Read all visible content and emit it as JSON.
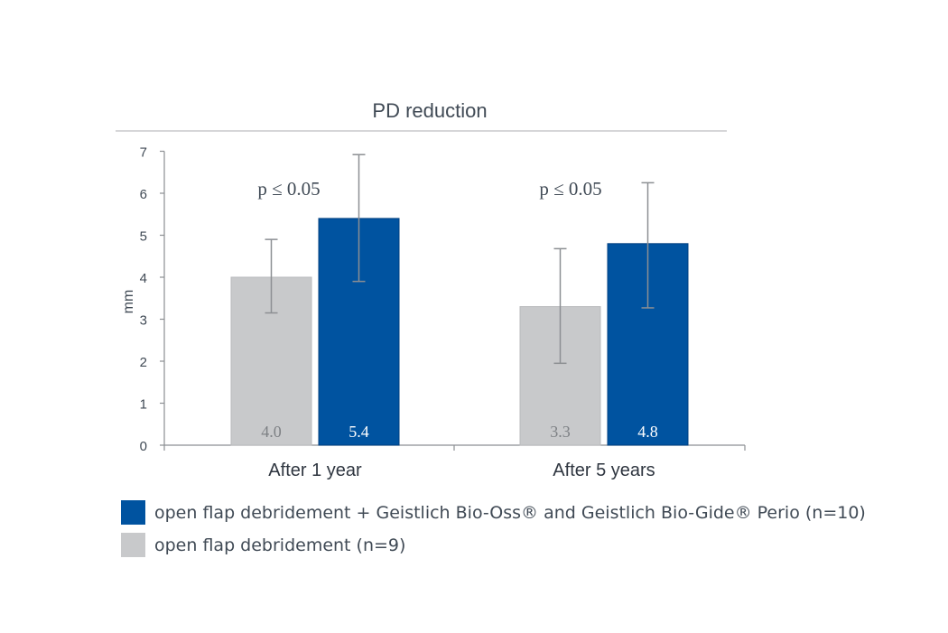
{
  "chart_data": {
    "type": "bar",
    "title": "PD reduction",
    "ylabel": "mm",
    "xlabel": "",
    "ylim": [
      0,
      7
    ],
    "yticks": [
      "0",
      "1",
      "2",
      "3",
      "4",
      "5",
      "6",
      "7"
    ],
    "categories": [
      "After 1 year",
      "After 5 years"
    ],
    "series": [
      {
        "name": "open flap debridement (n=9)",
        "color": "#c8c9cb",
        "values": [
          4.0,
          3.3
        ],
        "labels": [
          "4.0",
          "3.3"
        ],
        "err_low": [
          3.15,
          1.95
        ],
        "err_high": [
          4.9,
          4.68
        ]
      },
      {
        "name": "open flap debridement + Geistlich Bio-Oss® and Geistlich Bio-Gide® Perio (n=10)",
        "color": "#0053a0",
        "values": [
          5.4,
          4.8
        ],
        "labels": [
          "5.4",
          "4.8"
        ],
        "err_low": [
          3.9,
          3.27
        ],
        "err_high": [
          6.92,
          6.25
        ]
      }
    ],
    "annotations": [
      "p ≤  0.05",
      "p ≤ 0.05"
    ],
    "legend_order": [
      1,
      0
    ],
    "legend_position": "bottom-left",
    "grid": false
  }
}
